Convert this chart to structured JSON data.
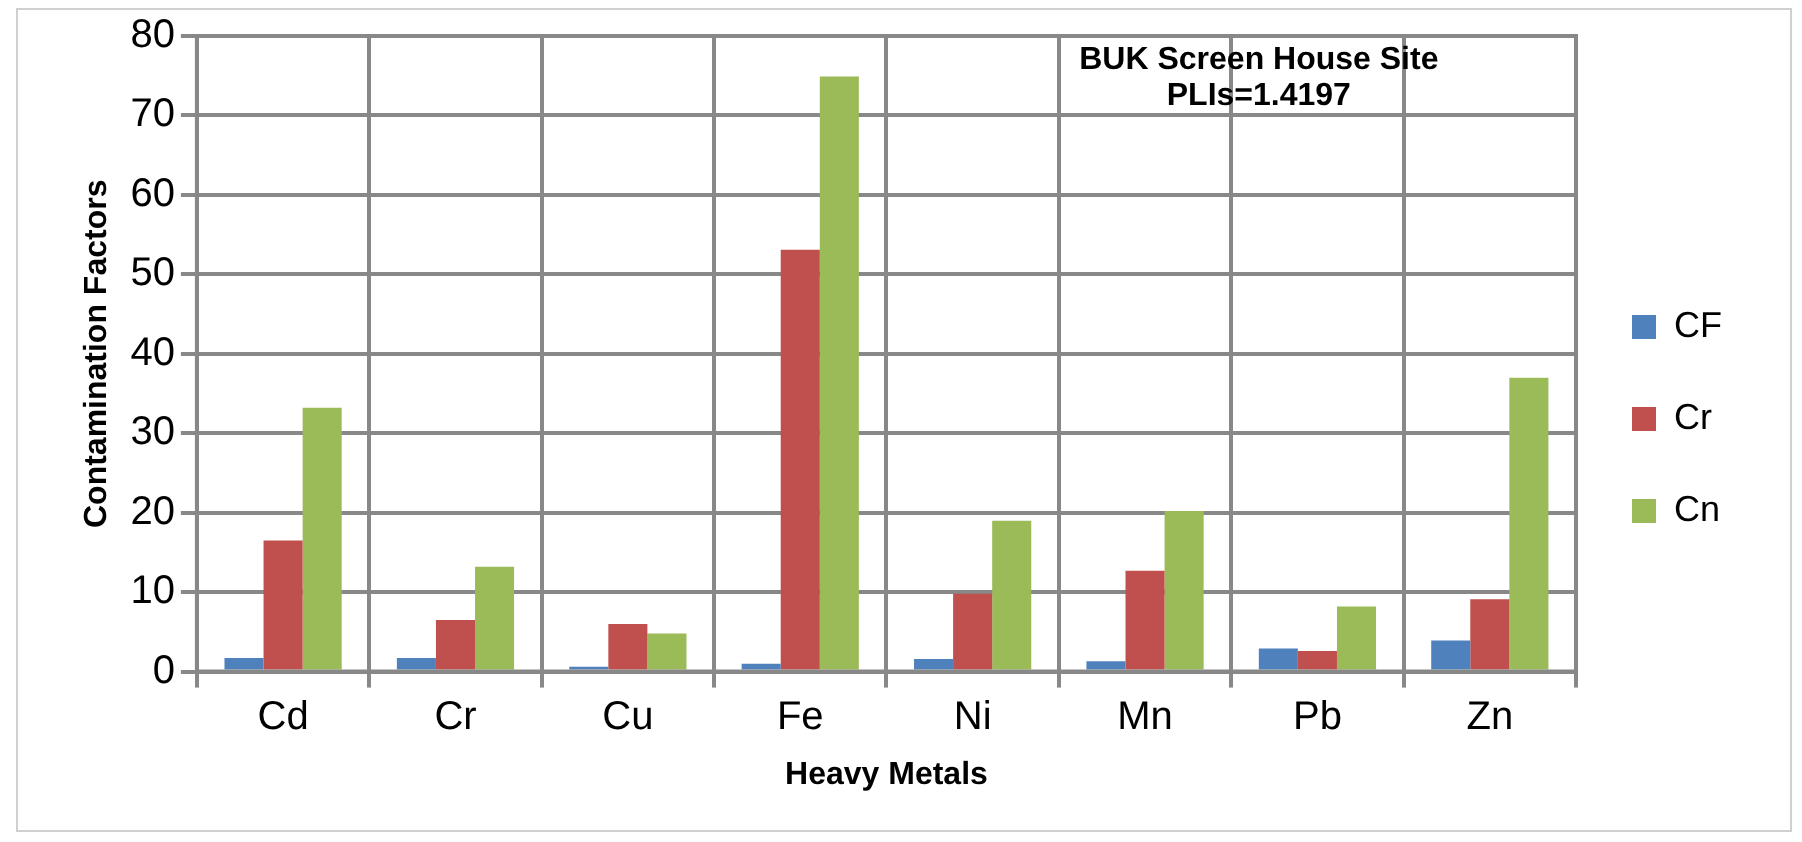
{
  "chart_data": {
    "type": "bar",
    "xlabel": "Heavy Metals",
    "ylabel": "Contamination Factors",
    "categories": [
      "Cd",
      "Cr",
      "Cu",
      "Fe",
      "Ni",
      "Mn",
      "Pb",
      "Zn"
    ],
    "series": [
      {
        "name": "CF",
        "color": "#4f81bd",
        "values": [
          1.7,
          1.7,
          0.6,
          1.0,
          1.6,
          1.3,
          2.9,
          3.9
        ]
      },
      {
        "name": "Cr",
        "color": "#c0504d",
        "values": [
          16.5,
          6.5,
          6.0,
          53.1,
          9.8,
          12.7,
          2.6,
          9.1
        ]
      },
      {
        "name": "Cn",
        "color": "#9bbb59",
        "values": [
          33.2,
          13.2,
          4.8,
          74.9,
          19.0,
          20.2,
          8.2,
          37.0
        ]
      }
    ],
    "ylim": [
      0,
      80
    ],
    "yticks": [
      0,
      10,
      20,
      30,
      40,
      50,
      60,
      70,
      80
    ],
    "grid": true,
    "legend": "right",
    "annotations": [
      "BUK Screen House Site",
      "PLIs=1.4197"
    ]
  }
}
